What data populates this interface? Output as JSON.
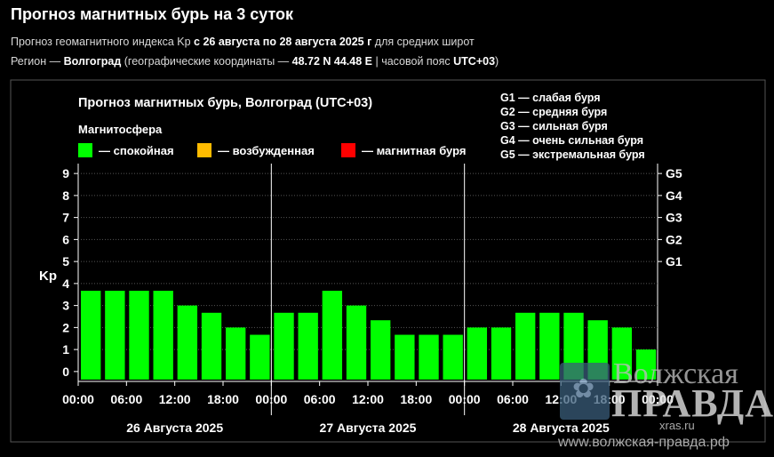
{
  "header": {
    "title": "Прогноз магнитных бурь на 3 суток",
    "line1_pre": "Прогноз геомагнитного индекса Kp ",
    "line1_bold": "с 26 августа по 28 августа 2025 г",
    "line1_post": " для средних широт",
    "line2_pre": "Регион — ",
    "line2_city": "Волгоград",
    "line2_mid": " (географические координаты — ",
    "line2_coords": "48.72 N 44.48 E",
    "line2_tzlabel": " | часовой пояс ",
    "line2_tz": "UTC+03",
    "line2_end": ")"
  },
  "chart_data": {
    "type": "bar",
    "title": "Прогноз магнитных бурь, Волгоград (UTC+03)",
    "legend_title": "Магнитосфера",
    "legend": [
      {
        "label": "— спокойная",
        "color": "#00ff00"
      },
      {
        "label": "— возбужденная",
        "color": "#ffbb00"
      },
      {
        "label": "— магнитная буря",
        "color": "#ff0000"
      }
    ],
    "storm_levels": [
      "G1 — слабая буря",
      "G2 — средняя буря",
      "G3 — сильная буря",
      "G4 — очень сильная буря",
      "G5 — экстремальная буря"
    ],
    "ylabel": "Kp",
    "ylim": [
      0,
      9
    ],
    "y_ticks": [
      "0",
      "1",
      "2",
      "3",
      "4",
      "5",
      "6",
      "7",
      "8",
      "9"
    ],
    "right_ticks": [
      {
        "value": 5,
        "label": "G1"
      },
      {
        "value": 6,
        "label": "G2"
      },
      {
        "value": 7,
        "label": "G3"
      },
      {
        "value": 8,
        "label": "G4"
      },
      {
        "value": 9,
        "label": "G5"
      }
    ],
    "x_ticks": [
      "00:00",
      "06:00",
      "12:00",
      "18:00",
      "00:00",
      "06:00",
      "12:00",
      "18:00",
      "00:00",
      "06:00",
      "12:00",
      "18:00",
      "00:00"
    ],
    "days": [
      "26 Августа 2025",
      "27 Августа 2025",
      "28 Августа 2025"
    ],
    "values": [
      3.67,
      3.67,
      3.67,
      3.67,
      3.0,
      2.67,
      2.0,
      1.67,
      2.67,
      2.67,
      3.67,
      3.0,
      2.33,
      1.67,
      1.67,
      1.67,
      2.0,
      2.0,
      2.67,
      2.67,
      2.67,
      2.33,
      2.0,
      1.0
    ],
    "bar_color": "#00ff00",
    "grid": true
  },
  "watermark": {
    "line1": "Волжская",
    "line2": "ПРАВДА",
    "line3": "xras.ru",
    "line4": "www.волжская-правда.рф"
  }
}
